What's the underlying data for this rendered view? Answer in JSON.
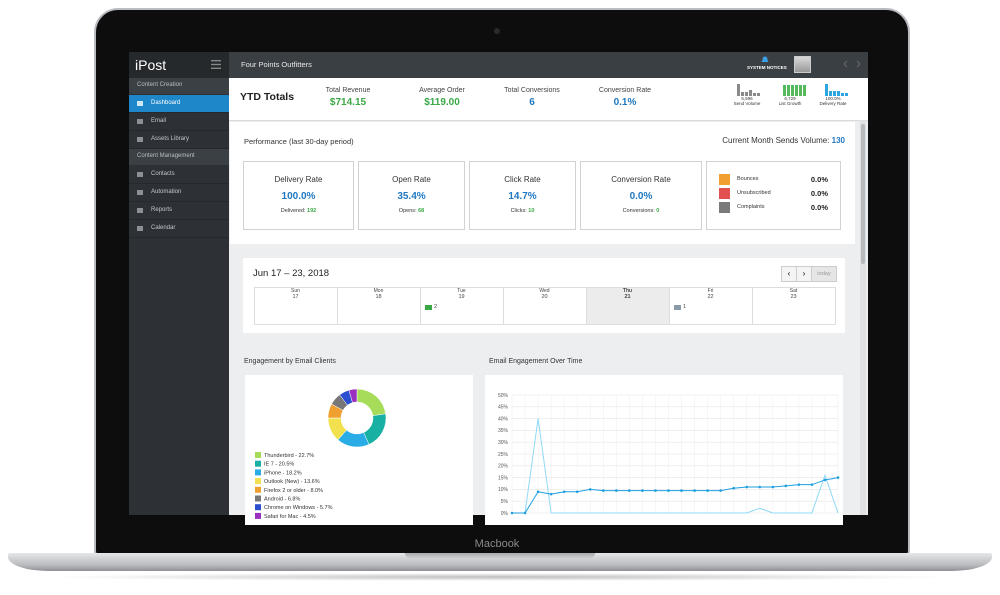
{
  "device_label": "Macbook",
  "sidebar": {
    "logo": "iPost",
    "sections": [
      {
        "title": "Content Creation",
        "items": [
          "Dashboard",
          "Email",
          "Assets Library"
        ]
      },
      {
        "title": "Content Management",
        "items": [
          "Contacts",
          "Automation",
          "Reports",
          "Calendar"
        ]
      }
    ]
  },
  "header": {
    "account": "Four Points Outfitters",
    "notices": "SYSTEM NOTICES"
  },
  "ytd": {
    "title": "YTD Totals",
    "metrics": [
      {
        "label": "Total Revenue",
        "value": "$714.15"
      },
      {
        "label": "Average Order",
        "value": "$119.00"
      },
      {
        "label": "Total Conversions",
        "value": 6
      },
      {
        "label": "Conversion Rate",
        "value": "0.1%"
      }
    ],
    "sparks": [
      {
        "value": "5,696",
        "label": "Send Volume"
      },
      {
        "value": "6,729",
        "label": "List Growth"
      },
      {
        "value": "100.0%",
        "label": "Delivery Rate"
      }
    ]
  },
  "performance": {
    "title": "Performance (last 30-day period)",
    "sends_label": "Current Month Sends Volume:",
    "sends_value": 130,
    "cards": [
      {
        "title": "Delivery Rate",
        "value": "100.0%",
        "sub_label": "Delivered:",
        "sub_value": 192
      },
      {
        "title": "Open Rate",
        "value": "35.4%",
        "sub_label": "Opens:",
        "sub_value": 68
      },
      {
        "title": "Click Rate",
        "value": "14.7%",
        "sub_label": "Clicks:",
        "sub_value": 10
      },
      {
        "title": "Conversion Rate",
        "value": "0.0%",
        "sub_label": "Conversions:",
        "sub_value": 0
      }
    ],
    "issues": [
      {
        "label": "Bounces",
        "value": "0.0%",
        "color": "#f0a030"
      },
      {
        "label": "Unsubscribed",
        "value": "0.0%",
        "color": "#e2504f"
      },
      {
        "label": "Complaints",
        "value": "0.0%",
        "color": "#7a7a7a"
      }
    ]
  },
  "calendar": {
    "title": "Jun 17 – 23, 2018",
    "today": "today",
    "days": [
      {
        "name": "Sun",
        "date": 17
      },
      {
        "name": "Mon",
        "date": 18
      },
      {
        "name": "Tue",
        "date": 19,
        "events": 2
      },
      {
        "name": "Wed",
        "date": 20
      },
      {
        "name": "Thu",
        "date": 21
      },
      {
        "name": "Fri",
        "date": 22,
        "events": 1
      },
      {
        "name": "Sat",
        "date": 23
      }
    ]
  },
  "engagement_clients": {
    "title": "Engagement by Email Clients",
    "chart": {
      "type": "pie",
      "values": [
        22.7,
        20.5,
        18.2,
        13.6,
        8.0,
        6.8,
        5.7,
        4.5
      ],
      "colors": [
        "#a6dc5a",
        "#17b0a2",
        "#2aade6",
        "#f2e04e",
        "#f0a030",
        "#777777",
        "#2c4fd0",
        "#9b30c0"
      ],
      "labels": [
        "Thunderbird - 22.7%",
        "IE 7 - 20.5%",
        "iPhone - 18.2%",
        "Outlook (New) - 13.6%",
        "Firefox 2 or older - 8.0%",
        "Android - 6.8%",
        "Chrome on Windows - 5.7%",
        "Safari for Mac - 4.5%"
      ]
    }
  },
  "engagement_time": {
    "title": "Email Engagement Over Time",
    "chart": {
      "type": "line",
      "categories": [
        null,
        null,
        null,
        null,
        null,
        null,
        null,
        null,
        null,
        null,
        null,
        null,
        null,
        null,
        null,
        null,
        null,
        null,
        null,
        null,
        null,
        null,
        null,
        null,
        null,
        null
      ],
      "series": [
        {
          "color": "#1e9fe0",
          "values": [
            0,
            0,
            9,
            8,
            9,
            9,
            10,
            9.5,
            9.5,
            9.5,
            9.5,
            9.5,
            9.5,
            9.5,
            9.5,
            9.5,
            9.5,
            10.5,
            11,
            11,
            11,
            11.5,
            12,
            12,
            14,
            15
          ]
        },
        {
          "color": "#8fd8f8",
          "values": [
            0,
            0,
            40,
            0,
            0,
            0,
            0,
            0,
            0,
            0,
            0,
            0,
            0,
            0,
            0,
            0,
            0,
            0,
            0,
            2,
            0,
            0,
            0,
            0,
            16,
            0
          ]
        }
      ],
      "ylim": [
        0,
        50
      ],
      "yticks": [
        {
          "value": 0,
          "label": "0%"
        },
        {
          "value": 5,
          "label": "5%"
        },
        {
          "value": 10,
          "label": "10%"
        },
        {
          "value": 15,
          "label": "15%"
        },
        {
          "value": 20,
          "label": "20%"
        },
        {
          "value": 25,
          "label": "25%"
        },
        {
          "value": 30,
          "label": "30%"
        },
        {
          "value": 35,
          "label": "35%"
        },
        {
          "value": 40,
          "label": "40%"
        },
        {
          "value": 45,
          "label": "45%"
        },
        {
          "value": 50,
          "label": "50%"
        }
      ],
      "grid": true
    }
  }
}
